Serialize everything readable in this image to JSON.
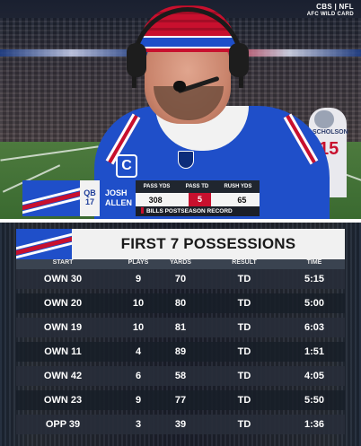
{
  "broadcast": {
    "network": "CBS | NFL",
    "subtitle": "AFC WILD CARD"
  },
  "lower_third": {
    "position": "QB",
    "number": "17",
    "first_name": "JOSH",
    "last_name": "ALLEN",
    "stat_headers": [
      "PASS YDS",
      "PASS TD",
      "RUSH YDS"
    ],
    "stat_values": [
      "308",
      "5",
      "65"
    ],
    "footnote": "BILLS POSTSEASON RECORD"
  },
  "background_player": {
    "name": "SCHOLSON",
    "number": "15"
  },
  "board": {
    "title": "FIRST 7 POSSESSIONS",
    "columns": [
      "START",
      "PLAYS",
      "YARDS",
      "RESULT",
      "TIME"
    ],
    "rows": [
      {
        "start": "OWN 30",
        "plays": "9",
        "yards": "70",
        "result": "TD",
        "time": "5:15"
      },
      {
        "start": "OWN 20",
        "plays": "10",
        "yards": "80",
        "result": "TD",
        "time": "5:00"
      },
      {
        "start": "OWN 19",
        "plays": "10",
        "yards": "81",
        "result": "TD",
        "time": "6:03"
      },
      {
        "start": "OWN 11",
        "plays": "4",
        "yards": "89",
        "result": "TD",
        "time": "1:51"
      },
      {
        "start": "OWN 42",
        "plays": "6",
        "yards": "58",
        "result": "TD",
        "time": "4:05"
      },
      {
        "start": "OWN 23",
        "plays": "9",
        "yards": "77",
        "result": "TD",
        "time": "5:50"
      },
      {
        "start": "OPP 39",
        "plays": "3",
        "yards": "39",
        "result": "TD",
        "time": "1:36"
      }
    ]
  },
  "colors": {
    "bills_blue": "#1f4fc9",
    "bills_red": "#c8102e",
    "board_dark": "#1e2230"
  }
}
